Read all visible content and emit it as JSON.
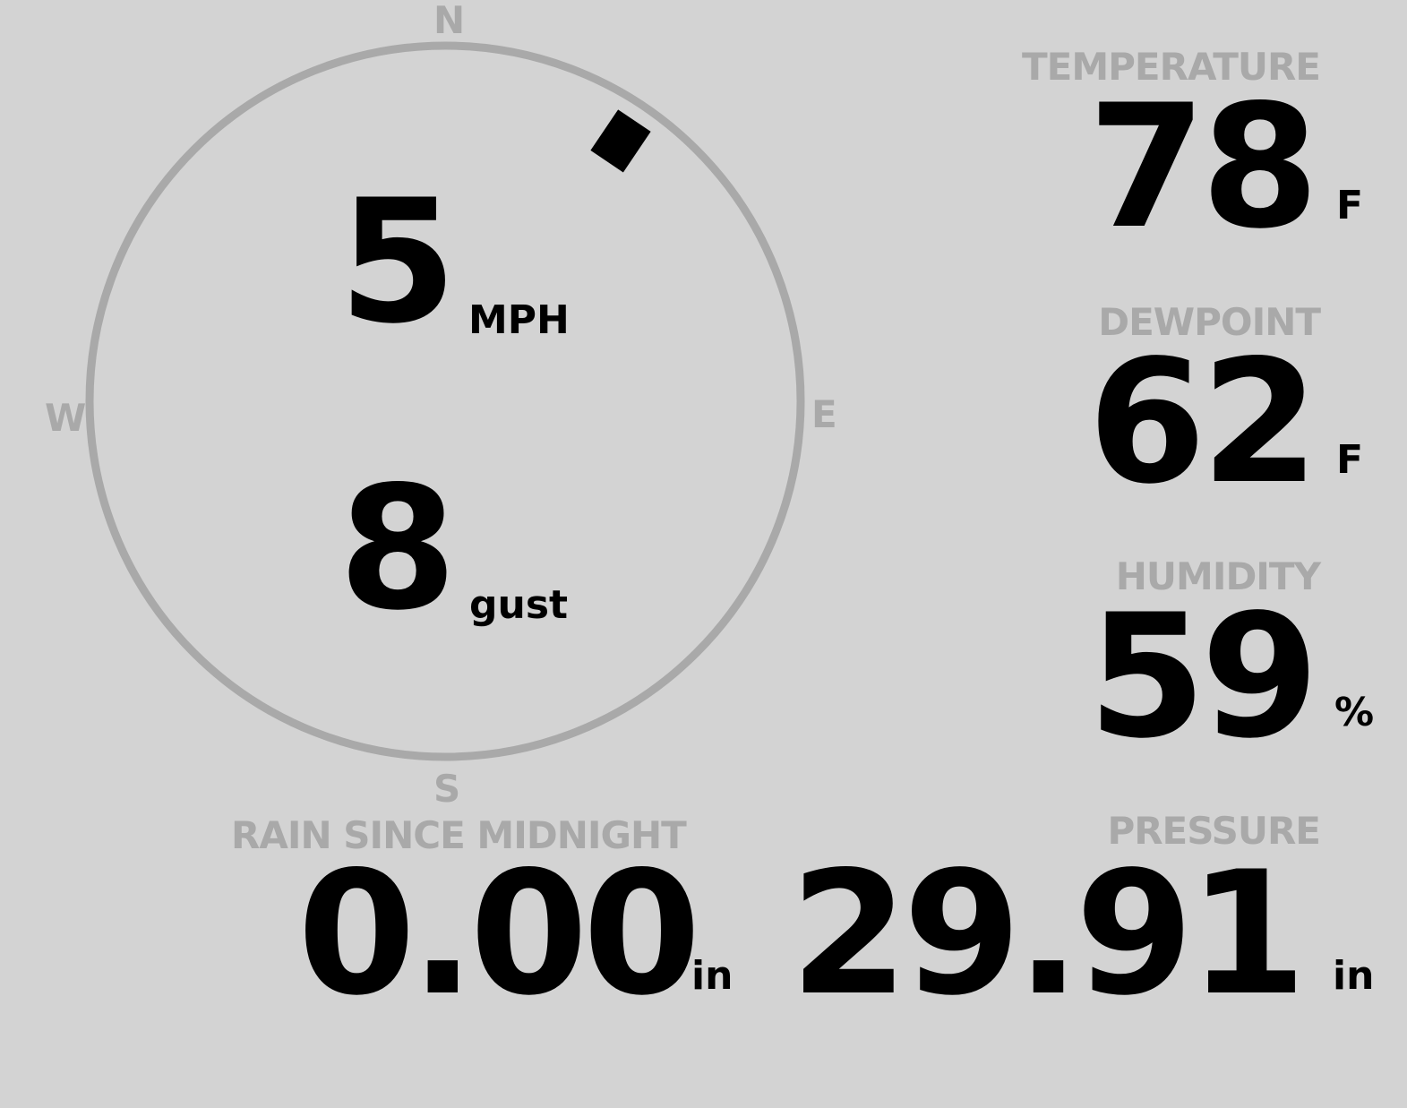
{
  "wind": {
    "speed": "5",
    "speed_unit": "MPH",
    "gust": "8",
    "gust_label": "gust",
    "direction_degrees": 34,
    "compass": {
      "n": "N",
      "e": "E",
      "s": "S",
      "w": "W"
    }
  },
  "temperature": {
    "label": "TEMPERATURE",
    "value": "78",
    "unit": "F"
  },
  "dewpoint": {
    "label": "DEWPOINT",
    "value": "62",
    "unit": "F"
  },
  "humidity": {
    "label": "HUMIDITY",
    "value": "59",
    "unit": "%"
  },
  "rain": {
    "label": "RAIN SINCE MIDNIGHT",
    "value": "0.00",
    "unit": "in"
  },
  "pressure": {
    "label": "PRESSURE",
    "value": "29.91",
    "unit": "in"
  },
  "colors": {
    "background": "#d3d3d3",
    "label": "#a9a9a9",
    "value": "#000000"
  }
}
